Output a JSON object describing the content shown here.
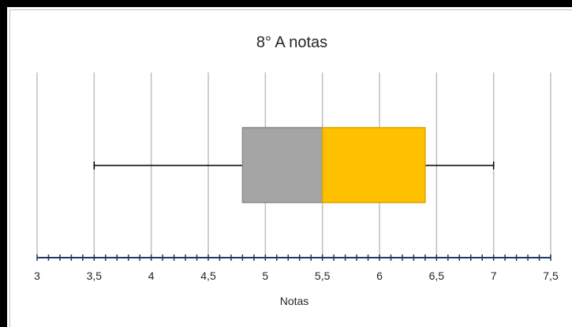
{
  "chart_data": {
    "type": "boxplot",
    "title": "8° A notas",
    "xlabel": "Notas",
    "ylabel": "",
    "xlim": [
      3,
      7.5
    ],
    "x_ticks": [
      3,
      3.5,
      4,
      4.5,
      5,
      5.5,
      6,
      6.5,
      7,
      7.5
    ],
    "x_tick_labels": [
      "3",
      "3,5",
      "4",
      "4,5",
      "5",
      "5,5",
      "6",
      "6,5",
      "7",
      "7,5"
    ],
    "minor_tick_step": 0.1,
    "grid": "vertical major gridlines",
    "legend": "none",
    "box": {
      "min": 3.5,
      "q1": 4.8,
      "median": 5.5,
      "q3": 6.4,
      "max": 7.0
    },
    "colors": {
      "lower_box": "#a5a5a5",
      "upper_box": "#ffc000",
      "whisker": "#000000",
      "grid": "#bfbfbf",
      "axis": "#1f3864"
    }
  }
}
